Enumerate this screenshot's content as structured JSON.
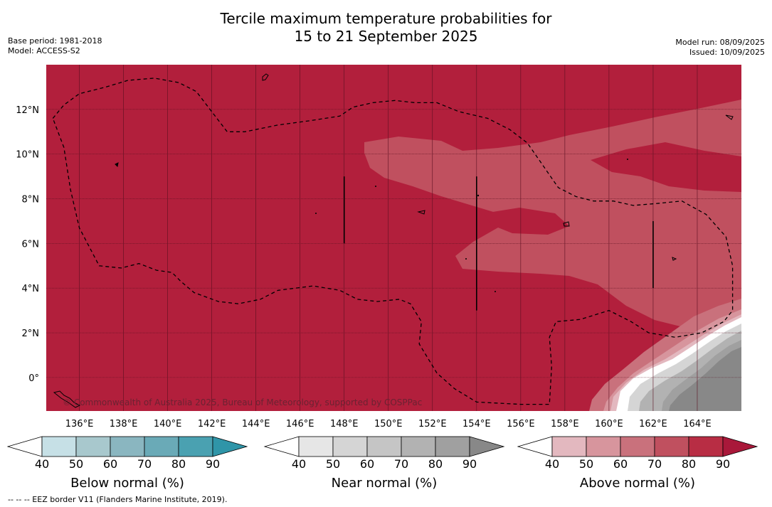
{
  "title_line1": "Tercile maximum temperature probabilities for",
  "title_line2": "15 to 21 September 2025",
  "base_period": "Base period: 1981-2018",
  "model": "Model: ACCESS-S2",
  "model_run": "Model run: 08/09/2025",
  "issued": "Issued: 10/09/2025",
  "map": {
    "lon_range": [
      134.5,
      166.0
    ],
    "lat_range": [
      -1.5,
      14.0
    ],
    "lat_ticks": [
      {
        "value": 12,
        "label": "12°N"
      },
      {
        "value": 10,
        "label": "10°N"
      },
      {
        "value": 8,
        "label": "8°N"
      },
      {
        "value": 6,
        "label": "6°N"
      },
      {
        "value": 4,
        "label": "4°N"
      },
      {
        "value": 2,
        "label": "2°N"
      },
      {
        "value": 0,
        "label": "0°"
      }
    ],
    "lon_ticks": [
      {
        "value": 136,
        "label": "136°E"
      },
      {
        "value": 138,
        "label": "138°E"
      },
      {
        "value": 140,
        "label": "140°E"
      },
      {
        "value": 142,
        "label": "142°E"
      },
      {
        "value": 144,
        "label": "144°E"
      },
      {
        "value": 146,
        "label": "146°E"
      },
      {
        "value": 148,
        "label": "148°E"
      },
      {
        "value": 150,
        "label": "150°E"
      },
      {
        "value": 152,
        "label": "152°E"
      },
      {
        "value": 154,
        "label": "154°E"
      },
      {
        "value": 156,
        "label": "156°E"
      },
      {
        "value": 158,
        "label": "158°E"
      },
      {
        "value": 160,
        "label": "160°E"
      },
      {
        "value": 162,
        "label": "162°E"
      },
      {
        "value": 164,
        "label": "164°E"
      }
    ],
    "copyright": "© Commonwealth of Australia 2025, Bureau of Meteorology, supported by COSPPac",
    "background_color": "#b21f3c",
    "eez_border": [
      [
        134.8,
        11.6
      ],
      [
        135.3,
        12.2
      ],
      [
        136.0,
        12.7
      ],
      [
        137.2,
        13.0
      ],
      [
        138.2,
        13.3
      ],
      [
        139.4,
        13.4
      ],
      [
        140.5,
        13.2
      ],
      [
        141.3,
        12.8
      ],
      [
        142.0,
        11.9
      ],
      [
        142.7,
        11.0
      ],
      [
        143.5,
        11.0
      ],
      [
        145.0,
        11.3
      ],
      [
        146.5,
        11.5
      ],
      [
        147.8,
        11.7
      ],
      [
        148.4,
        12.1
      ],
      [
        149.3,
        12.3
      ],
      [
        150.3,
        12.4
      ],
      [
        151.2,
        12.3
      ],
      [
        152.2,
        12.3
      ],
      [
        153.2,
        11.9
      ],
      [
        154.5,
        11.6
      ],
      [
        155.5,
        11.1
      ],
      [
        156.3,
        10.5
      ],
      [
        157.0,
        9.5
      ],
      [
        157.7,
        8.5
      ],
      [
        158.5,
        8.1
      ],
      [
        159.3,
        7.9
      ],
      [
        160.2,
        7.9
      ],
      [
        161.1,
        7.7
      ],
      [
        162.3,
        7.8
      ],
      [
        163.3,
        7.9
      ],
      [
        164.4,
        7.3
      ],
      [
        165.3,
        6.3
      ],
      [
        165.6,
        5.0
      ],
      [
        165.6,
        3.0
      ],
      [
        165.2,
        2.5
      ],
      [
        164.2,
        2.0
      ],
      [
        163.0,
        1.8
      ],
      [
        161.8,
        2.0
      ],
      [
        161.0,
        2.5
      ],
      [
        160.0,
        3.0
      ],
      [
        158.7,
        2.6
      ],
      [
        157.6,
        2.5
      ],
      [
        157.3,
        1.8
      ],
      [
        157.4,
        0.5
      ],
      [
        157.3,
        -1.2
      ],
      [
        156.0,
        -1.2
      ],
      [
        154.0,
        -1.1
      ],
      [
        153.0,
        -0.5
      ],
      [
        152.2,
        0.2
      ],
      [
        151.4,
        1.5
      ],
      [
        151.5,
        2.5
      ],
      [
        151.0,
        3.3
      ],
      [
        150.5,
        3.5
      ],
      [
        149.5,
        3.4
      ],
      [
        148.6,
        3.5
      ],
      [
        147.8,
        3.9
      ],
      [
        146.6,
        4.1
      ],
      [
        145.8,
        4.0
      ],
      [
        145.0,
        3.9
      ],
      [
        144.2,
        3.5
      ],
      [
        143.2,
        3.3
      ],
      [
        142.3,
        3.4
      ],
      [
        141.2,
        3.8
      ],
      [
        140.6,
        4.3
      ],
      [
        140.2,
        4.7
      ],
      [
        139.5,
        4.8
      ],
      [
        138.7,
        5.1
      ],
      [
        137.9,
        4.9
      ],
      [
        136.9,
        5.0
      ],
      [
        136.0,
        6.7
      ],
      [
        135.6,
        8.4
      ],
      [
        135.3,
        10.3
      ],
      [
        134.8,
        11.6
      ]
    ],
    "boundary_lines": [
      {
        "lon": 148.0,
        "lat_from": 6.0,
        "lat_to": 9.0
      },
      {
        "lon": 154.0,
        "lat_from": 3.0,
        "lat_to": 9.0
      },
      {
        "lon": 162.0,
        "lat_from": 4.0,
        "lat_to": 7.0
      }
    ]
  },
  "colorbars": [
    {
      "title": "Below normal (%)",
      "ticks": [
        "40",
        "50",
        "60",
        "70",
        "80",
        "90"
      ],
      "low_color": "#ffffff",
      "colors": [
        "#c6e0e6",
        "#a8c8cd",
        "#8ab6c0",
        "#6aaab7",
        "#4aa1b1"
      ],
      "high_color": "#2f95a8"
    },
    {
      "title": "Near normal (%)",
      "ticks": [
        "40",
        "50",
        "60",
        "70",
        "80",
        "90"
      ],
      "low_color": "#ffffff",
      "colors": [
        "#e6e6e6",
        "#d5d5d5",
        "#c5c5c5",
        "#b2b2b2",
        "#a0a0a0"
      ],
      "high_color": "#888888"
    },
    {
      "title": "Above normal (%)",
      "ticks": [
        "40",
        "50",
        "60",
        "70",
        "80",
        "90"
      ],
      "low_color": "#ffffff",
      "colors": [
        "#e3b8bf",
        "#d7959d",
        "#c9717c",
        "#c0505f",
        "#b82d44"
      ],
      "high_color": "#a9183a"
    }
  ],
  "footnote": "--  --  -- EEZ border V11 (Flanders Marine Institute, 2019)."
}
